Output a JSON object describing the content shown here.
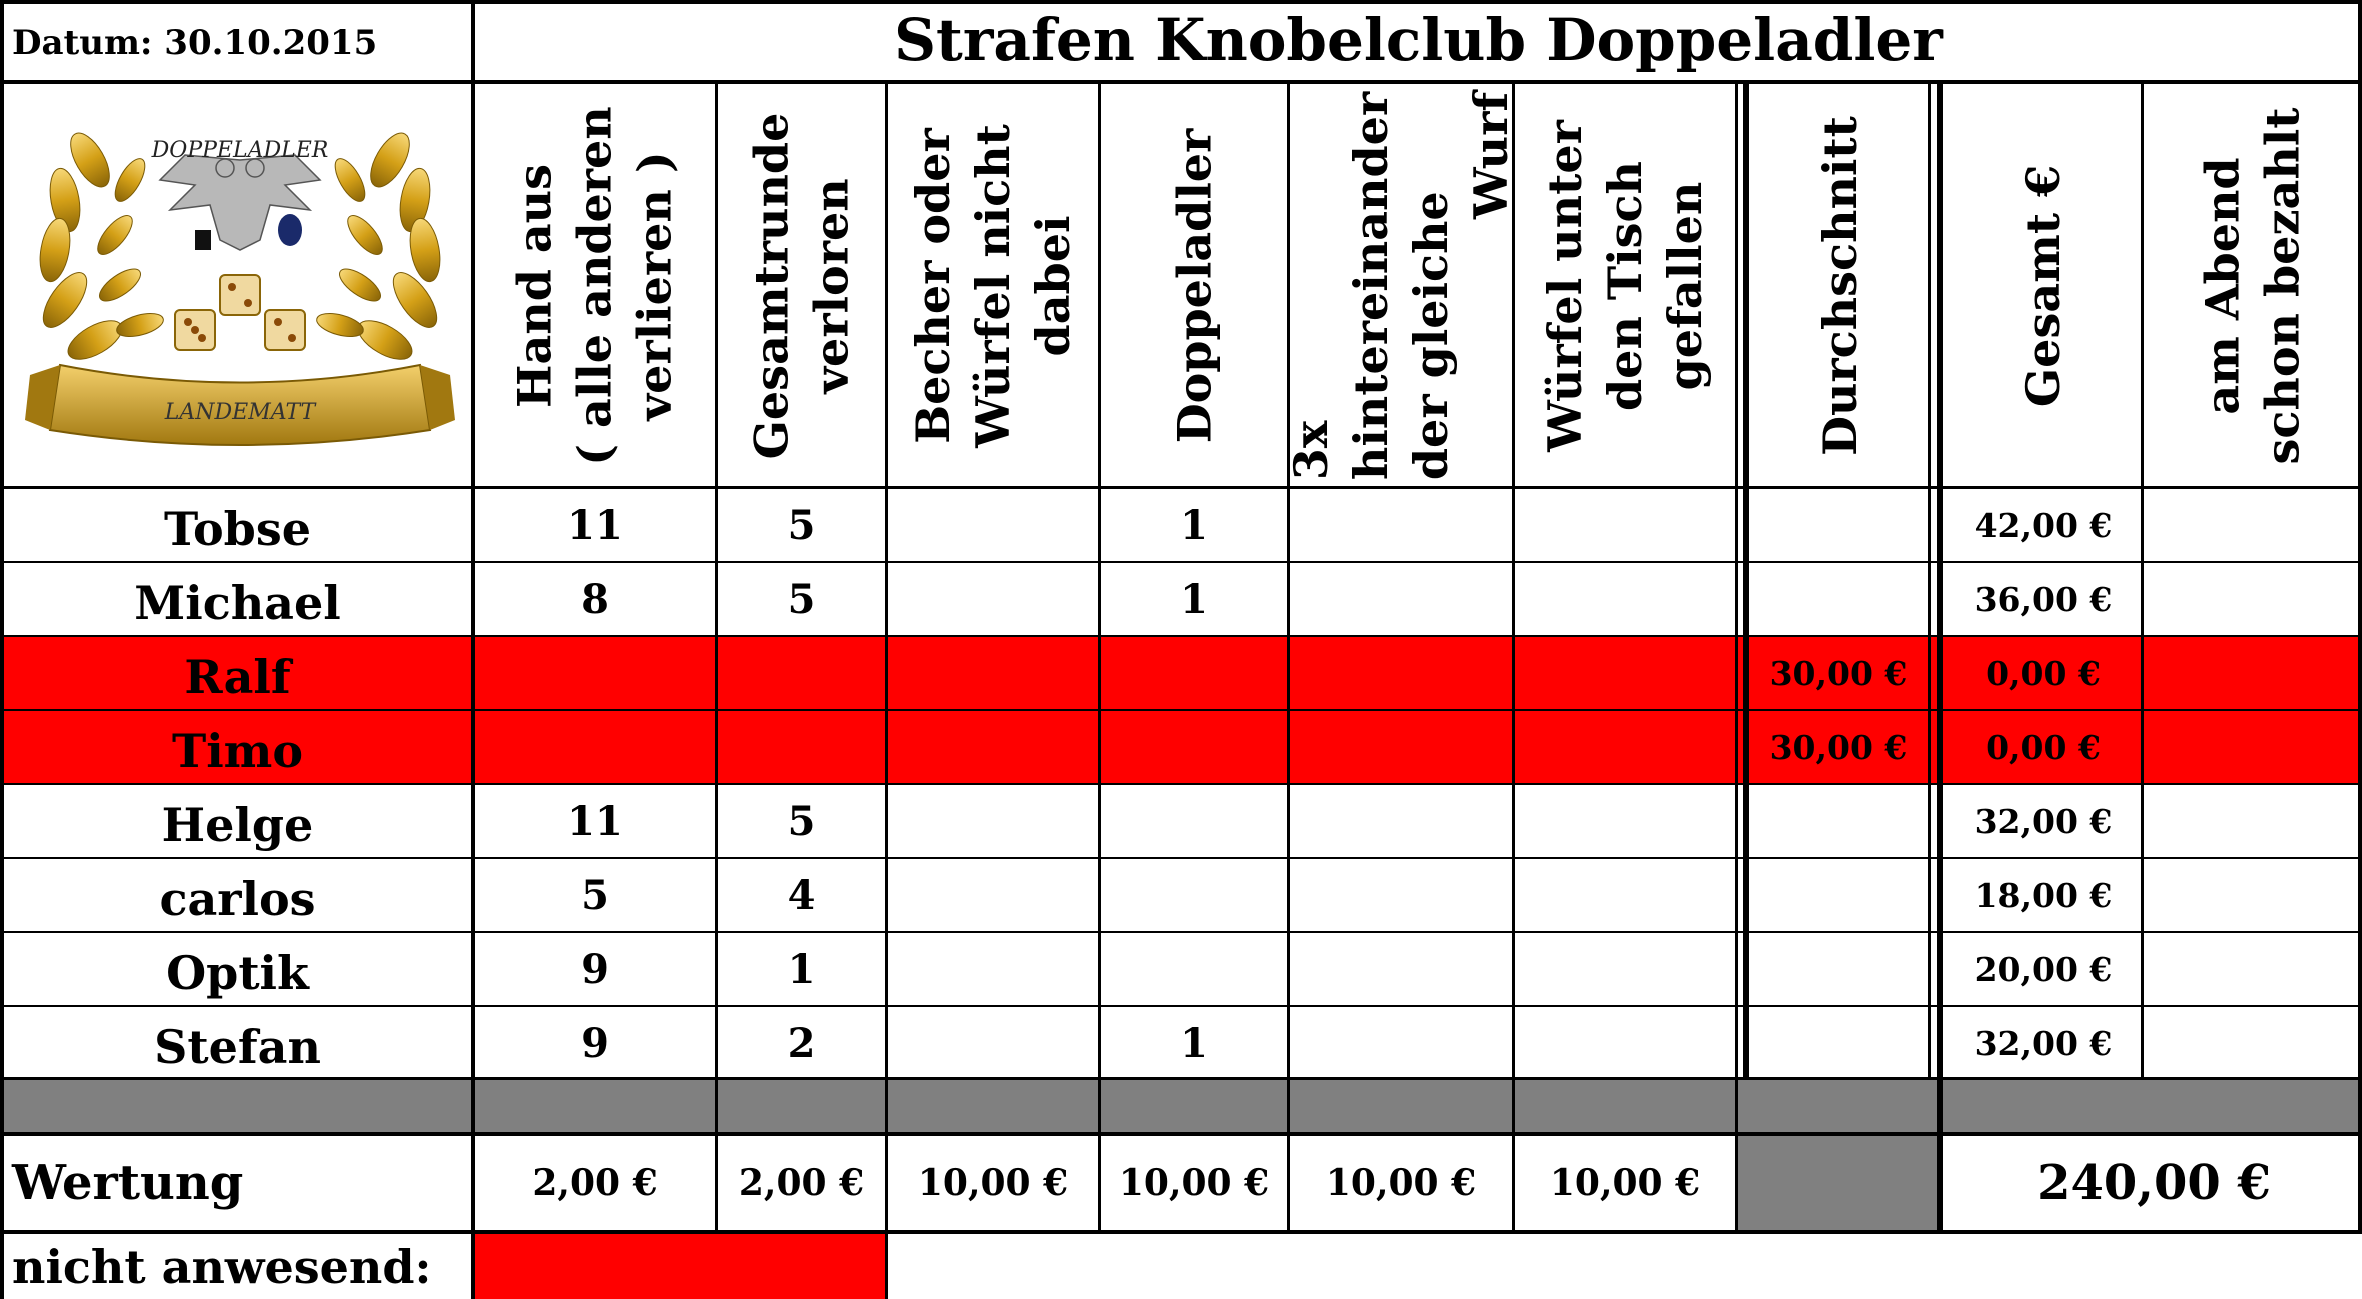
{
  "header": {
    "date_label": "Datum: 30.10.2015",
    "title": "Strafen Knobelclub Doppeladler"
  },
  "logo": {
    "top_text": "DOPPELADLER",
    "banner_text": "LANDEMATT"
  },
  "columns": [
    {
      "lines": [
        "Hand aus",
        "( alle anderen",
        "verlieren )"
      ]
    },
    {
      "lines": [
        "Gesamtrunde",
        "verloren"
      ]
    },
    {
      "lines": [
        "Becher oder",
        "Würfel nicht",
        "dabei"
      ]
    },
    {
      "lines": [
        "Doppeladler"
      ]
    },
    {
      "lines": [
        "3x",
        "hintereinander",
        "der gleiche",
        "Wurf"
      ]
    },
    {
      "lines": [
        "Würfel unter",
        "den Tisch",
        "gefallen"
      ]
    },
    {
      "lines": [
        "Durchschnitt"
      ]
    },
    {
      "lines": [
        "Gesamt €"
      ]
    },
    {
      "lines": [
        "am Abend",
        "schon bezahlt"
      ]
    }
  ],
  "rows": [
    {
      "name": "Tobse",
      "absent": false,
      "cells": [
        "11",
        "5",
        "",
        "1",
        "",
        "",
        "",
        "42,00 €",
        ""
      ]
    },
    {
      "name": "Michael",
      "absent": false,
      "cells": [
        "8",
        "5",
        "",
        "1",
        "",
        "",
        "",
        "36,00 €",
        ""
      ]
    },
    {
      "name": "Ralf",
      "absent": true,
      "cells": [
        "",
        "",
        "",
        "",
        "",
        "",
        "30,00 €",
        "0,00 €",
        ""
      ]
    },
    {
      "name": "Timo",
      "absent": true,
      "cells": [
        "",
        "",
        "",
        "",
        "",
        "",
        "30,00 €",
        "0,00 €",
        ""
      ]
    },
    {
      "name": "Helge",
      "absent": false,
      "cells": [
        "11",
        "5",
        "",
        "",
        "",
        "",
        "",
        "32,00 €",
        ""
      ]
    },
    {
      "name": "carlos",
      "absent": false,
      "cells": [
        "5",
        "4",
        "",
        "",
        "",
        "",
        "",
        "18,00 €",
        ""
      ]
    },
    {
      "name": "Optik",
      "absent": false,
      "cells": [
        "9",
        "1",
        "",
        "",
        "",
        "",
        "",
        "20,00 €",
        ""
      ]
    },
    {
      "name": "Stefan",
      "absent": false,
      "cells": [
        "9",
        "2",
        "",
        "1",
        "",
        "",
        "",
        "32,00 €",
        ""
      ]
    }
  ],
  "wertung": {
    "label": "Wertung",
    "values": [
      "2,00 €",
      "2,00 €",
      "10,00 €",
      "10,00 €",
      "10,00 €",
      "10,00 €"
    ],
    "total": "240,00 €"
  },
  "absent": {
    "label": "nicht anwesend:"
  },
  "colors": {
    "absent_row": "#ff0000",
    "separator": "#808080",
    "gold": "#d4a017"
  }
}
